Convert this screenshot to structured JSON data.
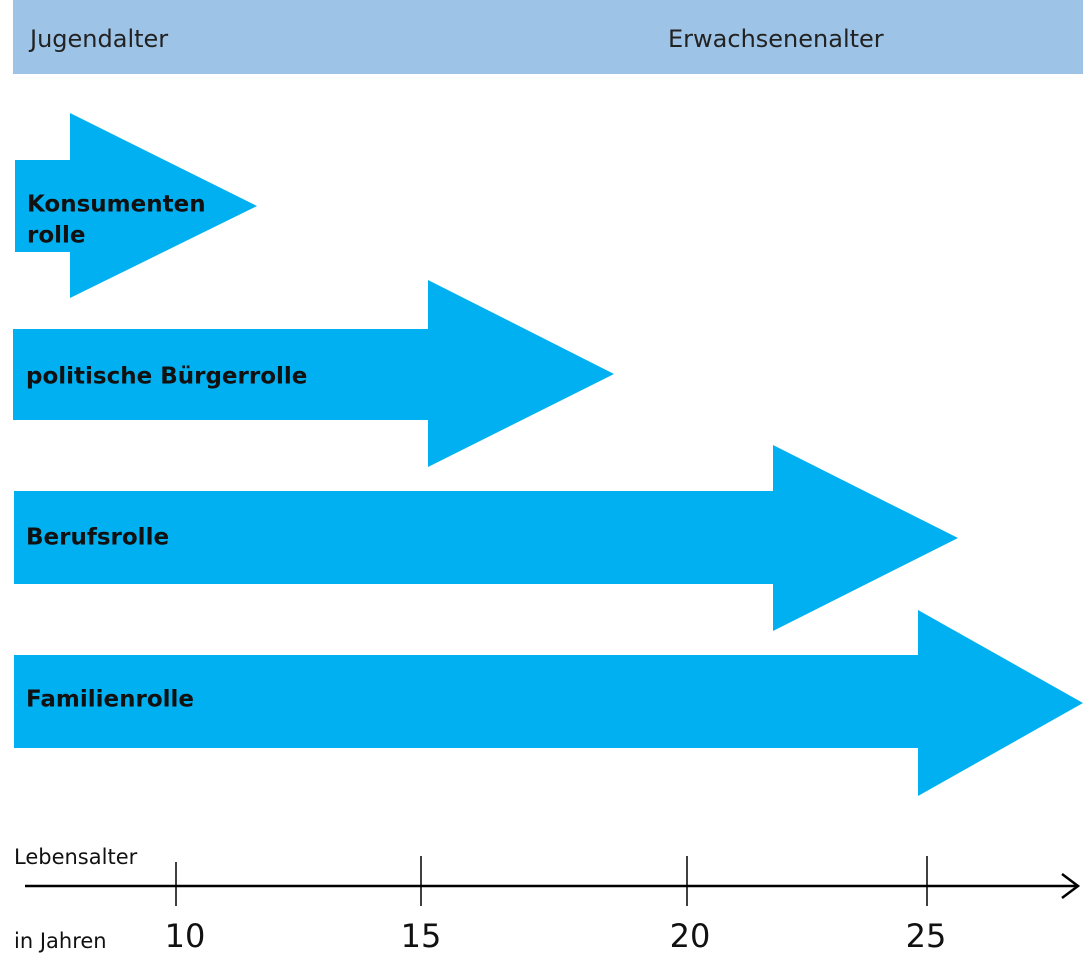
{
  "header": {
    "left": "Jugendalter",
    "right": "Erwachsenenalter"
  },
  "roles": [
    {
      "label": [
        "Konsumenten",
        "rolle"
      ]
    },
    {
      "label": [
        "politische Bürgerrolle"
      ]
    },
    {
      "label": [
        "Berufsrolle"
      ]
    },
    {
      "label": [
        "Familienrolle"
      ]
    }
  ],
  "axis": {
    "label": "Lebensalter",
    "unit_label": "in Jahren",
    "ticks": [
      10,
      15,
      20,
      25
    ]
  }
}
